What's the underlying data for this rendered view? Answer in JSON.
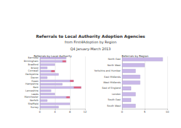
{
  "title": "Referrals to Local Authority Adoption Agencies",
  "subtitle": "from First4Adoption by Region",
  "period": "Q4 January-March 2013",
  "chart_data": [
    {
      "type": "bar",
      "title": "Referrals by Local Authority",
      "orientation": "horizontal",
      "stacked": true,
      "grid": true,
      "categories": [
        "Barnsley",
        "Birmingham",
        "Bradford",
        "Bristol",
        "Cornwall",
        "Derbyshire",
        "Devon",
        "Essex",
        "Hampshire",
        "Kent",
        "Lancashire",
        "Leeds",
        "Manchester",
        "Norfolk",
        "Sheffield",
        "Surrey"
      ],
      "series": [
        {
          "color": "#c9b8e8",
          "values": [
            7,
            6,
            4,
            2,
            3,
            5,
            2,
            8,
            6,
            9,
            3,
            4,
            7,
            2,
            8,
            5
          ]
        },
        {
          "color": "#e0607e",
          "values": [
            null,
            1,
            null,
            null,
            1,
            null,
            null,
            1,
            null,
            2,
            null,
            null,
            1,
            null,
            null,
            null
          ]
        }
      ],
      "xlim": [
        0,
        12
      ],
      "xticks": [
        0,
        4,
        8,
        12
      ]
    },
    {
      "type": "bar",
      "title": "Referrals by Region",
      "orientation": "horizontal",
      "grid": true,
      "categories": [
        "North East",
        "North West",
        "Yorkshire and Humber",
        "East Midlands",
        "West Midlands",
        "East of England",
        "London",
        "South East",
        "South West"
      ],
      "values": [
        9,
        5,
        3,
        4,
        4,
        2,
        3,
        2,
        3
      ],
      "color": "#c9b8e8",
      "xlim": [
        0,
        10
      ],
      "xticks": [
        0,
        5,
        10
      ]
    }
  ]
}
